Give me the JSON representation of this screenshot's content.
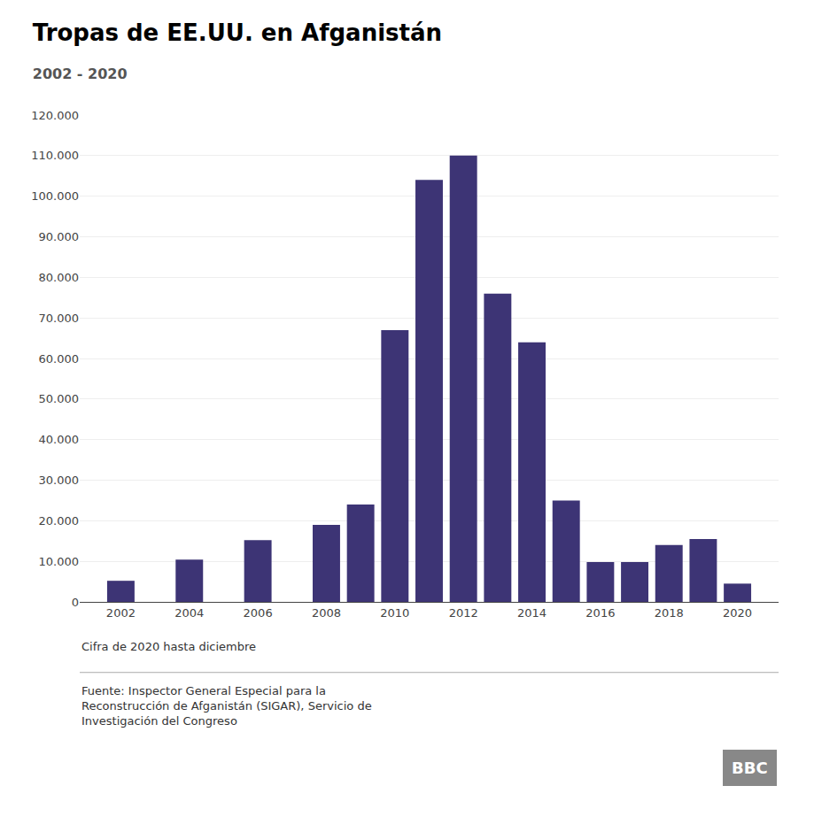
{
  "chart_data": {
    "type": "bar",
    "title": "Tropas de EE.UU. en Afganistán",
    "subtitle": "2002 - 2020",
    "x": [
      2002,
      2004,
      2006,
      2008,
      2009,
      2010,
      2011,
      2012,
      2013,
      2014,
      2015,
      2016,
      2017,
      2018,
      2019,
      2020
    ],
    "values": [
      5200,
      10400,
      15200,
      19000,
      24000,
      67000,
      104000,
      110000,
      76000,
      64000,
      25000,
      9800,
      9800,
      14000,
      15500,
      4500
    ],
    "color": "#3d3475",
    "xlim": [
      2000.8,
      2021.2
    ],
    "xticks": [
      2002,
      2004,
      2006,
      2008,
      2010,
      2012,
      2014,
      2016,
      2018,
      2020
    ],
    "ylim": [
      0,
      120000
    ],
    "yticks": [
      0,
      {
        "value": 10000,
        "label": "10.000"
      },
      {
        "value": 20000,
        "label": "20.000"
      },
      {
        "value": 30000,
        "label": "30.000"
      },
      {
        "value": 40000,
        "label": "40.000"
      },
      {
        "value": 50000,
        "label": "50.000"
      },
      {
        "value": 60000,
        "label": "60.000"
      },
      {
        "value": 70000,
        "label": "70.000"
      },
      {
        "value": 80000,
        "label": "80.000"
      },
      {
        "value": 90000,
        "label": "90.000"
      },
      {
        "value": 100000,
        "label": "100.000"
      },
      {
        "value": 110000,
        "label": "110.000"
      },
      {
        "value": 120000,
        "label": "120.000"
      }
    ],
    "grid": true,
    "footnote": "Cifra de 2020 hasta diciembre",
    "source": "Fuente: Inspector General Especial para la\nReconstrucción de Afganistán (SIGAR), Servicio de\nInvestigación del Congreso",
    "logo": "BBC"
  }
}
